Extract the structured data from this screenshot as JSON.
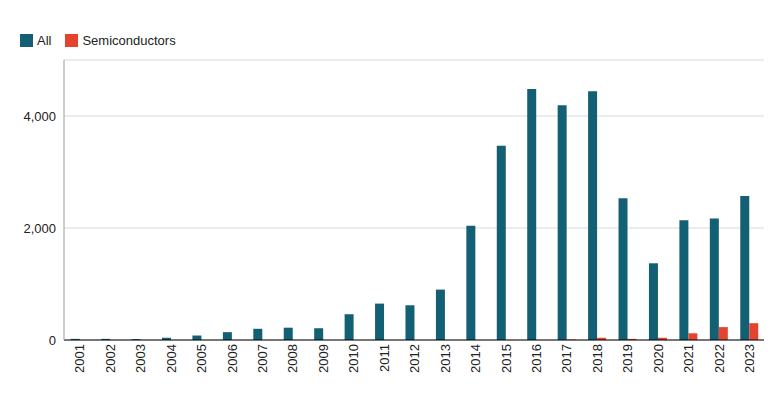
{
  "chart_data": {
    "type": "bar",
    "categories": [
      "2001",
      "2002",
      "2003",
      "2004",
      "2005",
      "2006",
      "2007",
      "2008",
      "2009",
      "2010",
      "2011",
      "2012",
      "2013",
      "2014",
      "2015",
      "2016",
      "2017",
      "2018",
      "2019",
      "2020",
      "2021",
      "2022",
      "2023"
    ],
    "series": [
      {
        "name": "All",
        "color": "#135f73",
        "values": [
          20,
          20,
          15,
          40,
          80,
          140,
          200,
          220,
          210,
          460,
          650,
          620,
          900,
          2040,
          3470,
          4480,
          4190,
          4440,
          2530,
          1370,
          2140,
          2170,
          2570
        ]
      },
      {
        "name": "Semiconductors",
        "color": "#e5432d",
        "values": [
          0,
          0,
          0,
          0,
          0,
          0,
          0,
          0,
          0,
          0,
          0,
          0,
          0,
          0,
          0,
          0,
          10,
          40,
          20,
          40,
          120,
          230,
          300
        ]
      }
    ],
    "ylim": [
      0,
      5000
    ],
    "yticks": [
      0,
      {
        "value": 2000,
        "label": "2,000"
      },
      {
        "value": 4000,
        "label": "4,000"
      }
    ],
    "grid": true,
    "legend": "top-left"
  }
}
